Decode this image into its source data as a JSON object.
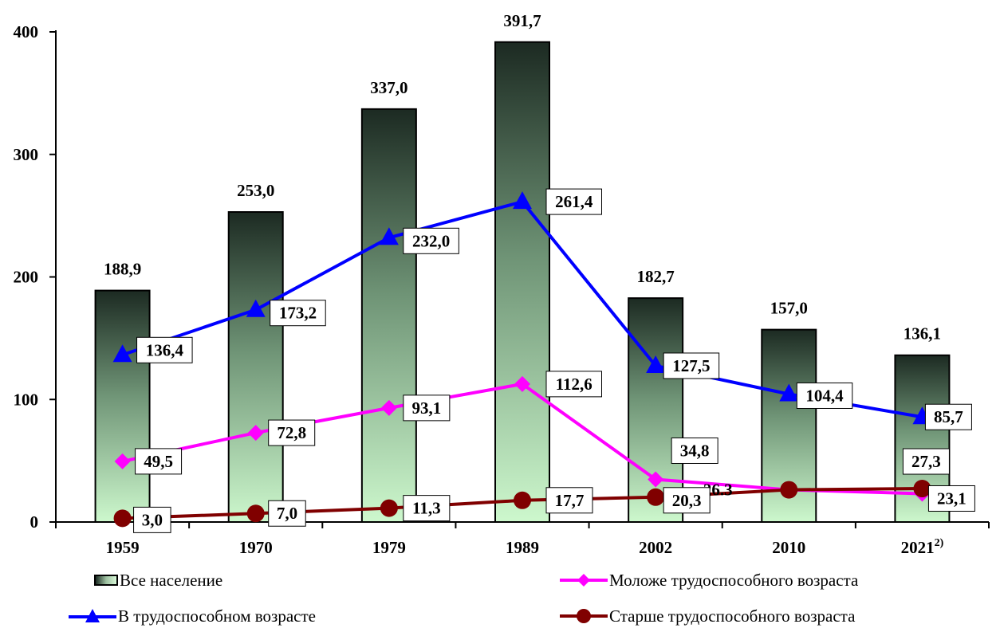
{
  "colors": {
    "bar_top": "#1c2a22",
    "bar_bottom": "#cdf8cd",
    "series_working": "#0000ff",
    "series_younger": "#ff00ff",
    "series_older": "#800000"
  },
  "chart_data": {
    "type": "bar",
    "categories": [
      "1959",
      "1970",
      "1979",
      "1989",
      "2002",
      "2010",
      "2021"
    ],
    "category_superscripts": [
      "",
      "",
      "",
      "",
      "",
      "",
      "2)"
    ],
    "ylim": [
      0,
      400
    ],
    "yticks": [
      0,
      100,
      200,
      300,
      400
    ],
    "grid": false,
    "legend_position": "bottom",
    "bars": {
      "name": "Все население",
      "values": [
        188.9,
        253.0,
        337.0,
        391.7,
        182.7,
        157.0,
        136.1
      ],
      "labels": [
        "188,9",
        "253,0",
        "337,0",
        "391,7",
        "182,7",
        "157,0",
        "136,1"
      ]
    },
    "series": [
      {
        "name": "В трудоспособном возрасте",
        "type": "line",
        "marker": "triangle",
        "values": [
          136.4,
          173.2,
          232.0,
          261.4,
          127.5,
          104.4,
          85.7
        ],
        "labels": [
          "136,4",
          "173,2",
          "232,0",
          "261,4",
          "127,5",
          "104,4",
          "85,7"
        ]
      },
      {
        "name": "Моложе трудоспособного возраста",
        "type": "line",
        "marker": "diamond",
        "values": [
          49.5,
          72.8,
          93.1,
          112.6,
          34.8,
          26.3,
          23.1
        ],
        "labels": [
          "49,5",
          "72,8",
          "93,1",
          "112,6",
          "34,8",
          "26.3",
          "23,1"
        ]
      },
      {
        "name": "Старше трудоспособного возраста",
        "type": "line",
        "marker": "circle",
        "values": [
          3.0,
          7.0,
          11.3,
          17.7,
          20.3,
          26.3,
          27.3
        ],
        "labels": [
          "3,0",
          "7,0",
          "11,3",
          "17,7",
          "20,3",
          "",
          "27,3"
        ]
      }
    ]
  },
  "legend": {
    "bars_label": "Все население",
    "younger_label": "Моложе трудоспособного возраста",
    "working_label": "В трудоспособном возрасте",
    "older_label": "Старше трудоспособного возраста"
  }
}
